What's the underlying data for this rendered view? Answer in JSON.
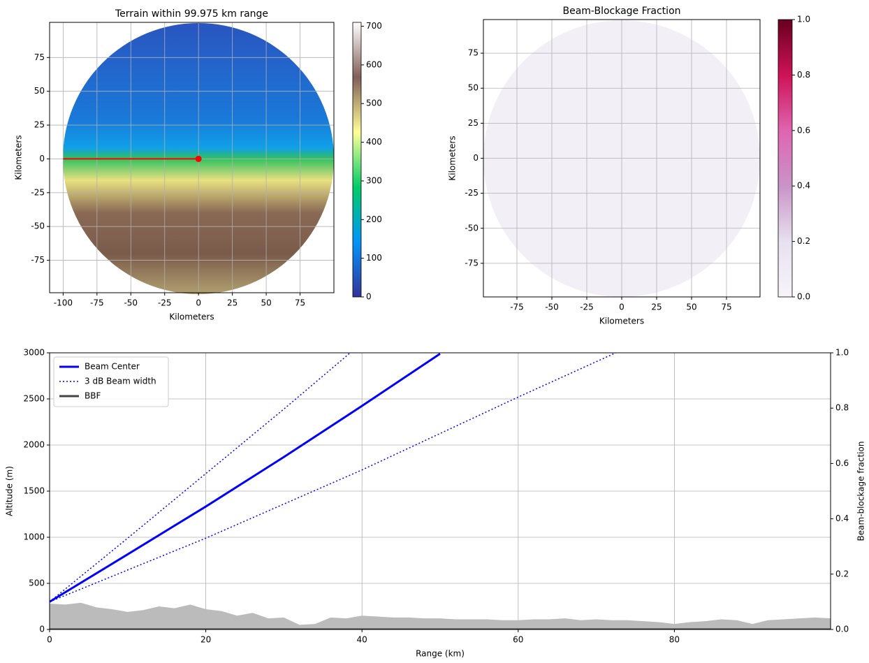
{
  "chart_data": [
    {
      "type": "map",
      "title": "Terrain within 99.975 km range",
      "xlabel": "Kilometers",
      "ylabel": "Kilometers",
      "xlim": [
        -110,
        100
      ],
      "ylim": [
        -99,
        101
      ],
      "xticks": [
        -100,
        -75,
        -50,
        -25,
        0,
        25,
        50,
        75
      ],
      "yticks": [
        -75,
        -50,
        -25,
        0,
        25,
        50,
        75
      ],
      "grid": true,
      "colormap": "terrain",
      "clim": [
        0,
        710
      ],
      "cticks": [
        0,
        100,
        200,
        300,
        400,
        500,
        600,
        700
      ],
      "line": {
        "x": [
          -100,
          0
        ],
        "y": [
          0,
          0
        ],
        "color": "red"
      }
    },
    {
      "type": "map",
      "title": "Beam-Blockage Fraction",
      "xlabel": "Kilometers",
      "ylabel": "Kilometers",
      "xlim": [
        -99,
        99
      ],
      "ylim": [
        -99,
        99
      ],
      "xticks": [
        -75,
        -50,
        -25,
        0,
        25,
        50,
        75
      ],
      "yticks": [
        -75,
        -50,
        -25,
        0,
        25,
        50,
        75
      ],
      "grid": true,
      "colormap": "PuRd",
      "clim": [
        0,
        1
      ],
      "cticks": [
        {
          "value": 0,
          "label": "0.0"
        },
        {
          "value": 0.2,
          "label": "0.2"
        },
        {
          "value": 0.4,
          "label": "0.4"
        },
        {
          "value": 0.6,
          "label": "0.6"
        },
        {
          "value": 0.8,
          "label": "0.8"
        },
        {
          "value": 1,
          "label": "1.0"
        }
      ]
    },
    {
      "type": "line",
      "xlabel": "Range (km)",
      "ylabel": "Altitude (m)",
      "y2label": "Beam-blockage fraction",
      "xlim": [
        0,
        100
      ],
      "ylim": [
        0,
        3000
      ],
      "y2lim": [
        0,
        1
      ],
      "xticks": [
        0,
        20,
        40,
        60,
        80
      ],
      "yticks": [
        0,
        500,
        1000,
        1500,
        2000,
        2500,
        3000
      ],
      "y2ticks": [
        {
          "value": 0,
          "label": "0.0"
        },
        {
          "value": 0.2,
          "label": "0.2"
        },
        {
          "value": 0.4,
          "label": "0.4"
        },
        {
          "value": 0.6,
          "label": "0.6"
        },
        {
          "value": 0.8,
          "label": "0.8"
        },
        {
          "value": 1,
          "label": "1.0"
        }
      ],
      "grid": true,
      "legend": "upper-left",
      "fill": {
        "color": "#bbbbbb",
        "x": [
          0,
          2,
          4,
          6,
          8,
          10,
          12,
          14,
          16,
          18,
          20,
          22,
          24,
          26,
          28,
          30,
          32,
          34,
          36,
          38,
          40,
          42,
          44,
          46,
          48,
          50,
          52,
          54,
          56,
          58,
          60,
          62,
          64,
          66,
          68,
          70,
          72,
          74,
          76,
          78,
          80,
          82,
          84,
          86,
          88,
          90,
          92,
          94,
          96,
          98,
          100
        ],
        "values": [
          280,
          270,
          290,
          240,
          220,
          190,
          210,
          250,
          230,
          270,
          220,
          200,
          150,
          180,
          120,
          130,
          50,
          60,
          130,
          120,
          150,
          140,
          130,
          130,
          120,
          120,
          110,
          110,
          110,
          100,
          100,
          110,
          110,
          120,
          100,
          110,
          100,
          100,
          90,
          80,
          60,
          80,
          90,
          110,
          100,
          60,
          100,
          110,
          120,
          130,
          120
        ]
      },
      "series": [
        {
          "name": "Beam Center",
          "color": "#0000ff",
          "style": "solid",
          "x": [
            0,
            10,
            20,
            30,
            40,
            50
          ],
          "values": [
            300,
            815,
            1333,
            1870,
            2424,
            2990
          ]
        },
        {
          "name": "3 dB Beam width",
          "color": "#0000ff",
          "style": "dotted",
          "lines": [
            {
              "x": [
                0,
                10,
                20,
                30,
                38.5
              ],
              "values": [
                300,
                990,
                1690,
                2390,
                3000
              ]
            },
            {
              "x": [
                0,
                20,
                40,
                60,
                72.5
              ],
              "values": [
                300,
                990,
                1730,
                2520,
                3000
              ]
            }
          ]
        },
        {
          "name": "BBF",
          "color": "#444444",
          "style": "solid",
          "axis": "y2",
          "x": [
            0,
            100
          ],
          "values": [
            0,
            0
          ]
        }
      ]
    }
  ]
}
